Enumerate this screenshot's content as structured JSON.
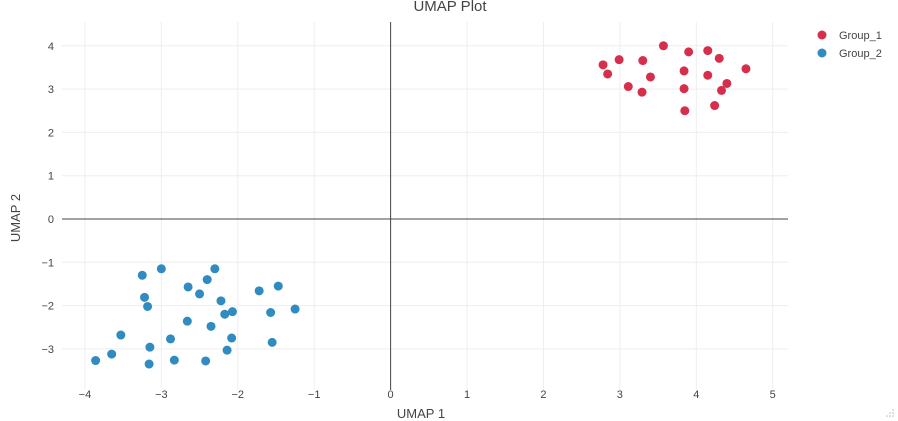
{
  "chart_data": {
    "type": "scatter",
    "title": "UMAP Plot",
    "xlabel": "UMAP 1",
    "ylabel": "UMAP 2",
    "xlim": [
      -4.3,
      5.2
    ],
    "ylim": [
      -3.95,
      4.55
    ],
    "x_ticks": [
      -4,
      -3,
      -2,
      -1,
      0,
      1,
      2,
      3,
      4,
      5
    ],
    "y_ticks": [
      -3,
      -2,
      -1,
      0,
      1,
      2,
      3,
      4
    ],
    "grid": true,
    "zero_lines": true,
    "legend_position": "top-right",
    "series": [
      {
        "name": "Group_1",
        "color": "#d62f4b",
        "points": [
          [
            3.57,
            4.0
          ],
          [
            2.99,
            3.68
          ],
          [
            3.3,
            3.66
          ],
          [
            3.9,
            3.86
          ],
          [
            4.15,
            3.89
          ],
          [
            4.3,
            3.71
          ],
          [
            2.78,
            3.56
          ],
          [
            2.84,
            3.35
          ],
          [
            3.84,
            3.42
          ],
          [
            4.15,
            3.32
          ],
          [
            4.65,
            3.47
          ],
          [
            3.4,
            3.28
          ],
          [
            3.11,
            3.06
          ],
          [
            3.29,
            2.93
          ],
          [
            3.84,
            3.01
          ],
          [
            4.4,
            3.13
          ],
          [
            4.33,
            2.97
          ],
          [
            4.24,
            2.62
          ],
          [
            3.85,
            2.5
          ]
        ]
      },
      {
        "name": "Group_2",
        "color": "#2f8bc0",
        "points": [
          [
            -3.0,
            -1.15
          ],
          [
            -3.25,
            -1.3
          ],
          [
            -2.3,
            -1.15
          ],
          [
            -2.4,
            -1.4
          ],
          [
            -2.65,
            -1.57
          ],
          [
            -2.5,
            -1.73
          ],
          [
            -2.22,
            -1.89
          ],
          [
            -3.22,
            -1.81
          ],
          [
            -3.18,
            -2.02
          ],
          [
            -1.47,
            -1.55
          ],
          [
            -1.72,
            -1.66
          ],
          [
            -2.07,
            -2.14
          ],
          [
            -2.17,
            -2.2
          ],
          [
            -1.57,
            -2.16
          ],
          [
            -1.25,
            -2.08
          ],
          [
            -2.66,
            -2.36
          ],
          [
            -2.35,
            -2.48
          ],
          [
            -3.53,
            -2.68
          ],
          [
            -2.88,
            -2.77
          ],
          [
            -2.08,
            -2.75
          ],
          [
            -1.55,
            -2.85
          ],
          [
            -3.15,
            -2.96
          ],
          [
            -2.14,
            -3.03
          ],
          [
            -3.65,
            -3.12
          ],
          [
            -3.86,
            -3.27
          ],
          [
            -2.83,
            -3.26
          ],
          [
            -2.42,
            -3.28
          ],
          [
            -3.16,
            -3.35
          ]
        ]
      }
    ]
  }
}
